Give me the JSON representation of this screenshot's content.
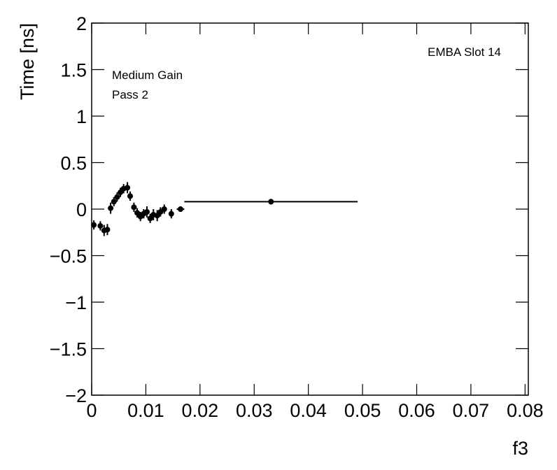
{
  "chart_data": {
    "type": "errorbar",
    "annotations": [
      "Medium Gain",
      "Pass 2",
      "EMBA Slot 14"
    ],
    "y_label": "Time [ns]",
    "x_label": "f3",
    "color": "#000000",
    "x": [
      0.0004,
      0.0016,
      0.0023,
      0.0029,
      0.0035,
      0.0041,
      0.0047,
      0.0053,
      0.0059,
      0.0066,
      0.0071,
      0.0078,
      0.0084,
      0.009,
      0.0096,
      0.0102,
      0.0108,
      0.0114,
      0.0121,
      0.0127,
      0.0134,
      0.0147,
      0.0164,
      0.0331
    ],
    "x_errors": [
      0.0003,
      0.0003,
      0.0003,
      0.0003,
      0.0003,
      0.0003,
      0.0003,
      0.0003,
      0.0003,
      0.0003,
      0.0003,
      0.0003,
      0.0003,
      0.0003,
      0.0003,
      0.0003,
      0.0003,
      0.0003,
      0.0003,
      0.0003,
      0.0003,
      0.0003,
      0.0007,
      0.016
    ],
    "values": [
      -0.17,
      -0.18,
      -0.23,
      -0.22,
      0.01,
      0.08,
      0.13,
      0.18,
      0.22,
      0.23,
      0.14,
      0.02,
      -0.04,
      -0.08,
      -0.05,
      -0.03,
      -0.1,
      -0.06,
      -0.07,
      -0.03,
      0.0,
      -0.05,
      0.0,
      0.08
    ],
    "errors": [
      0.05,
      0.05,
      0.06,
      0.06,
      0.06,
      0.05,
      0.05,
      0.05,
      0.05,
      0.06,
      0.05,
      0.05,
      0.05,
      0.05,
      0.05,
      0.06,
      0.05,
      0.06,
      0.06,
      0.05,
      0.05,
      0.05,
      0.03,
      0.03
    ],
    "xlim": [
      0,
      0.0806
    ],
    "xticks": [
      0,
      0.01,
      0.02,
      0.03,
      0.04,
      0.05,
      0.06,
      0.07,
      0.08
    ],
    "ylim": [
      -2,
      2
    ],
    "yticks": [
      {
        "value": -2,
        "label": "−2"
      },
      {
        "value": -1.5,
        "label": "−1.5"
      },
      {
        "value": -1,
        "label": "−1"
      },
      {
        "value": -0.5,
        "label": "−0.5"
      },
      0,
      0.5,
      1,
      1.5,
      2
    ]
  }
}
